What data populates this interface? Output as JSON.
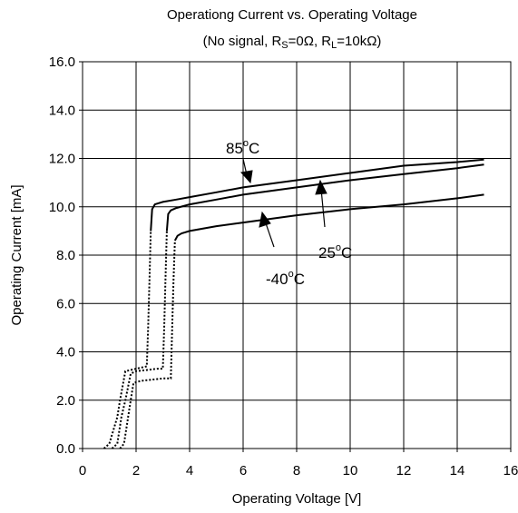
{
  "chart_data": {
    "type": "line",
    "title": "Operationg Current vs. Operating Voltage",
    "subtitle": {
      "open": "(No signal, R",
      "s_sub": "S",
      "mid": "=0Ω, R",
      "l_sub": "L",
      "close": "=10kΩ)"
    },
    "xlabel": "Operating Voltage [V]",
    "ylabel": "Operating Current [mA]",
    "xlim": [
      0,
      16
    ],
    "ylim": [
      0,
      16
    ],
    "xticks": [
      "0",
      "2",
      "4",
      "6",
      "8",
      "10",
      "12",
      "14",
      "16"
    ],
    "yticks": [
      "0.0",
      "2.0",
      "4.0",
      "6.0",
      "8.0",
      "10.0",
      "12.0",
      "14.0",
      "16.0"
    ],
    "grid": true,
    "series": [
      {
        "name": "85°C",
        "x": [
          0.8,
          1.0,
          1.3,
          1.4,
          1.6,
          1.8,
          2.0,
          2.2,
          2.4,
          2.45,
          2.5,
          2.55,
          2.6,
          2.7,
          3.0,
          3.5,
          4.0,
          5.0,
          6.0,
          8.0,
          10.0,
          12.0,
          14.0,
          15.0
        ],
        "y": [
          0.0,
          0.2,
          1.3,
          2.0,
          3.2,
          3.25,
          3.3,
          3.35,
          3.4,
          5.0,
          7.0,
          9.0,
          9.9,
          10.1,
          10.2,
          10.3,
          10.4,
          10.6,
          10.8,
          11.1,
          11.4,
          11.7,
          11.85,
          11.95
        ]
      },
      {
        "name": "25°C",
        "x": [
          1.1,
          1.3,
          1.45,
          1.6,
          1.8,
          2.0,
          2.4,
          2.8,
          3.0,
          3.05,
          3.1,
          3.15,
          3.2,
          3.3,
          3.5,
          4.0,
          5.0,
          6.0,
          8.0,
          10.0,
          12.0,
          14.0,
          15.0
        ],
        "y": [
          0.0,
          0.2,
          1.3,
          2.0,
          3.1,
          3.2,
          3.25,
          3.3,
          3.3,
          5.0,
          7.0,
          9.0,
          9.7,
          9.85,
          9.95,
          10.1,
          10.3,
          10.5,
          10.8,
          11.1,
          11.35,
          11.6,
          11.75
        ]
      },
      {
        "name": "-40°C",
        "x": [
          1.4,
          1.55,
          1.7,
          1.8,
          1.9,
          2.0,
          2.2,
          2.6,
          3.0,
          3.3,
          3.35,
          3.4,
          3.45,
          3.55,
          3.7,
          4.0,
          5.0,
          6.0,
          8.0,
          10.0,
          12.0,
          14.0,
          15.0
        ],
        "y": [
          0.0,
          0.2,
          1.3,
          2.0,
          2.7,
          2.75,
          2.8,
          2.85,
          2.9,
          2.9,
          5.0,
          7.0,
          8.6,
          8.8,
          8.9,
          9.0,
          9.2,
          9.35,
          9.65,
          9.9,
          10.1,
          10.35,
          10.5
        ]
      }
    ],
    "annotations": [
      {
        "label": "85",
        "deg": "o",
        "unit": "C",
        "series": "85°C"
      },
      {
        "label": "25",
        "deg": "o",
        "unit": "C",
        "series": "25°C"
      },
      {
        "label": "-40",
        "deg": "o",
        "unit": "C",
        "series": "-40°C"
      }
    ],
    "colors": {
      "line": "#000000",
      "grid": "#000000",
      "background": "#ffffff"
    }
  }
}
